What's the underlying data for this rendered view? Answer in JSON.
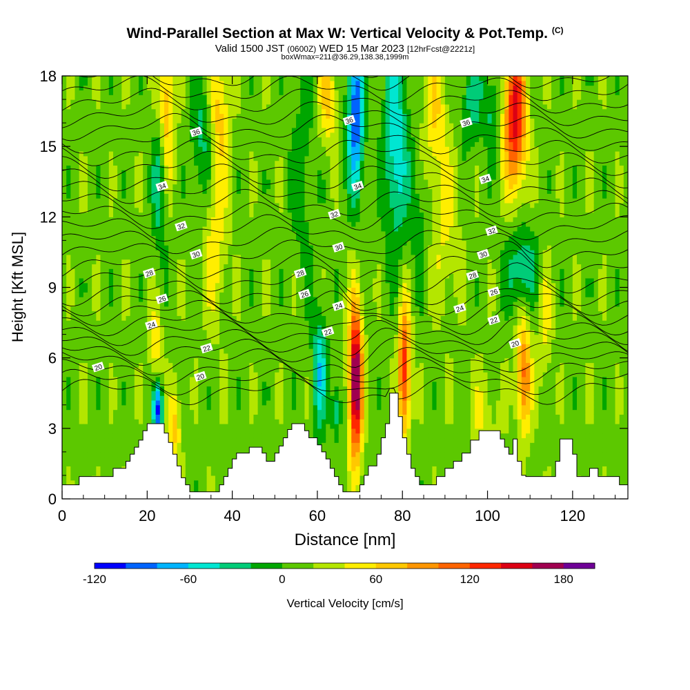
{
  "header": {
    "title": "Wind-Parallel Section at Max W: Vertical Velocity & Pot.Temp.",
    "title_mark": "(C)",
    "valid_line_pre": "Valid 1500 JST",
    "valid_line_utc": "(0600Z)",
    "valid_line_post": "WED 15 Mar 2023",
    "valid_line_fcst": "[12hrFcst@2221z]",
    "box_line": "boxWmax=211@36.29,138.38,1999m"
  },
  "chart_data": {
    "type": "heatmap",
    "xlabel": "Distance [nm]",
    "ylabel": "Height [Kft MSL]",
    "xlim": [
      0,
      133
    ],
    "ylim": [
      0,
      18
    ],
    "xticks": [
      0,
      20,
      40,
      60,
      80,
      100,
      120
    ],
    "yticks": [
      0,
      3,
      6,
      9,
      12,
      15,
      18
    ],
    "colorbar": {
      "label": "Vertical Velocity [cm/s]",
      "min": -120,
      "max": 200,
      "step": 20,
      "tick_labels": [
        "-120",
        "-60",
        "0",
        "60",
        "120",
        "180"
      ],
      "tick_values": [
        -120,
        -60,
        0,
        60,
        120,
        180
      ],
      "colors": [
        "#0000ff",
        "#0064ff",
        "#00b4ff",
        "#00e6d2",
        "#00cc78",
        "#00a600",
        "#5cc800",
        "#b4e600",
        "#ffee00",
        "#ffc800",
        "#ff9600",
        "#ff6400",
        "#ff2800",
        "#dc0014",
        "#a00050",
        "#6e0096"
      ]
    },
    "terrain": [
      [
        0,
        0.6
      ],
      [
        4,
        0.6
      ],
      [
        4,
        0.95
      ],
      [
        12,
        0.95
      ],
      [
        12,
        1.3
      ],
      [
        15,
        1.3
      ],
      [
        15,
        1.6
      ],
      [
        16,
        1.6
      ],
      [
        16,
        1.9
      ],
      [
        17,
        1.9
      ],
      [
        17,
        2.2
      ],
      [
        18,
        2.2
      ],
      [
        18,
        2.5
      ],
      [
        19,
        2.5
      ],
      [
        19,
        2.9
      ],
      [
        20,
        2.9
      ],
      [
        20,
        3.2
      ],
      [
        24,
        3.2
      ],
      [
        24,
        2.8
      ],
      [
        25,
        2.8
      ],
      [
        25,
        2.4
      ],
      [
        26,
        2.4
      ],
      [
        26,
        1.9
      ],
      [
        27,
        1.9
      ],
      [
        27,
        1.4
      ],
      [
        28,
        1.4
      ],
      [
        28,
        0.9
      ],
      [
        29,
        0.9
      ],
      [
        29,
        0.6
      ],
      [
        30,
        0.6
      ],
      [
        30,
        0.3
      ],
      [
        37,
        0.3
      ],
      [
        37,
        0.6
      ],
      [
        38,
        0.6
      ],
      [
        38,
        0.95
      ],
      [
        39,
        0.95
      ],
      [
        39,
        1.3
      ],
      [
        40,
        1.3
      ],
      [
        40,
        1.7
      ],
      [
        41,
        1.7
      ],
      [
        41,
        1.95
      ],
      [
        44,
        1.95
      ],
      [
        44,
        2.2
      ],
      [
        47,
        2.2
      ],
      [
        47,
        1.95
      ],
      [
        48,
        1.95
      ],
      [
        48,
        1.6
      ],
      [
        50,
        1.6
      ],
      [
        50,
        1.95
      ],
      [
        51,
        1.95
      ],
      [
        51,
        2.25
      ],
      [
        52,
        2.25
      ],
      [
        52,
        2.6
      ],
      [
        53,
        2.6
      ],
      [
        53,
        2.95
      ],
      [
        54,
        2.95
      ],
      [
        54,
        3.2
      ],
      [
        57,
        3.2
      ],
      [
        57,
        2.9
      ],
      [
        58,
        2.9
      ],
      [
        58,
        2.6
      ],
      [
        60,
        2.6
      ],
      [
        60,
        2.3
      ],
      [
        61,
        2.3
      ],
      [
        61,
        2.0
      ],
      [
        62,
        2.0
      ],
      [
        62,
        1.7
      ],
      [
        63,
        1.7
      ],
      [
        63,
        1.3
      ],
      [
        64,
        1.3
      ],
      [
        64,
        0.95
      ],
      [
        65,
        0.95
      ],
      [
        65,
        0.6
      ],
      [
        66,
        0.6
      ],
      [
        66,
        0.3
      ],
      [
        70,
        0.3
      ],
      [
        70,
        0.6
      ],
      [
        71,
        0.6
      ],
      [
        71,
        1.0
      ],
      [
        72,
        1.0
      ],
      [
        72,
        1.4
      ],
      [
        74,
        1.4
      ],
      [
        74,
        1.9
      ],
      [
        75,
        1.9
      ],
      [
        75,
        2.6
      ],
      [
        76,
        2.6
      ],
      [
        76,
        3.2
      ],
      [
        77,
        3.2
      ],
      [
        77,
        4.5
      ],
      [
        79,
        4.5
      ],
      [
        79,
        3.5
      ],
      [
        80,
        3.5
      ],
      [
        80,
        2.6
      ],
      [
        81,
        2.6
      ],
      [
        81,
        1.9
      ],
      [
        82,
        1.9
      ],
      [
        82,
        1.3
      ],
      [
        83,
        1.3
      ],
      [
        83,
        0.95
      ],
      [
        84,
        0.95
      ],
      [
        84,
        0.6
      ],
      [
        88,
        0.6
      ],
      [
        88,
        0.95
      ],
      [
        90,
        0.95
      ],
      [
        90,
        1.3
      ],
      [
        92,
        1.3
      ],
      [
        92,
        1.6
      ],
      [
        94,
        1.6
      ],
      [
        94,
        1.95
      ],
      [
        96,
        1.95
      ],
      [
        96,
        2.5
      ],
      [
        98,
        2.5
      ],
      [
        98,
        2.9
      ],
      [
        103,
        2.9
      ],
      [
        103,
        2.55
      ],
      [
        104,
        2.55
      ],
      [
        104,
        2.2
      ],
      [
        105,
        2.2
      ],
      [
        105,
        1.9
      ],
      [
        106,
        1.9
      ],
      [
        106,
        2.55
      ],
      [
        107,
        2.55
      ],
      [
        107,
        1.6
      ],
      [
        108,
        1.6
      ],
      [
        108,
        1.0
      ],
      [
        109,
        1.0
      ],
      [
        109,
        0.95
      ],
      [
        116,
        0.95
      ],
      [
        116,
        1.6
      ],
      [
        117,
        1.6
      ],
      [
        117,
        2.55
      ],
      [
        120,
        2.55
      ],
      [
        120,
        1.9
      ],
      [
        121,
        1.9
      ],
      [
        121,
        0.95
      ],
      [
        124,
        0.95
      ],
      [
        124,
        1.3
      ],
      [
        126,
        1.3
      ],
      [
        126,
        0.95
      ],
      [
        131,
        0.95
      ],
      [
        131,
        0.6
      ],
      [
        133,
        0.6
      ]
    ],
    "theta_contours": {
      "labeled_levels": [
        20,
        22,
        24,
        26,
        28,
        30,
        32,
        34,
        36
      ],
      "labels": [
        {
          "text": "20",
          "x": 8.5,
          "y": 5.6
        },
        {
          "text": "20",
          "x": 32.5,
          "y": 5.2
        },
        {
          "text": "20",
          "x": 106.5,
          "y": 6.6
        },
        {
          "text": "22",
          "x": 34,
          "y": 6.4
        },
        {
          "text": "22",
          "x": 62.5,
          "y": 7.1
        },
        {
          "text": "22",
          "x": 101.5,
          "y": 7.6
        },
        {
          "text": "24",
          "x": 21,
          "y": 7.4
        },
        {
          "text": "24",
          "x": 65,
          "y": 8.2
        },
        {
          "text": "24",
          "x": 93.5,
          "y": 8.1
        },
        {
          "text": "26",
          "x": 23.5,
          "y": 8.5
        },
        {
          "text": "26",
          "x": 57,
          "y": 8.7
        },
        {
          "text": "26",
          "x": 101.5,
          "y": 8.8
        },
        {
          "text": "28",
          "x": 20.5,
          "y": 9.6
        },
        {
          "text": "28",
          "x": 56,
          "y": 9.6
        },
        {
          "text": "28",
          "x": 96.5,
          "y": 9.5
        },
        {
          "text": "30",
          "x": 31.5,
          "y": 10.4
        },
        {
          "text": "30",
          "x": 65,
          "y": 10.7
        },
        {
          "text": "30",
          "x": 99,
          "y": 10.4
        },
        {
          "text": "32",
          "x": 28,
          "y": 11.6
        },
        {
          "text": "32",
          "x": 64,
          "y": 12.1
        },
        {
          "text": "32",
          "x": 101,
          "y": 11.4
        },
        {
          "text": "34",
          "x": 23.5,
          "y": 13.3
        },
        {
          "text": "34",
          "x": 69.5,
          "y": 13.3
        },
        {
          "text": "34",
          "x": 99.5,
          "y": 13.6
        },
        {
          "text": "36",
          "x": 31.5,
          "y": 15.6
        },
        {
          "text": "36",
          "x": 67.5,
          "y": 16.1
        },
        {
          "text": "36",
          "x": 95,
          "y": 16.0
        }
      ]
    },
    "w_features": [
      {
        "x": 69,
        "y": 5.0,
        "sx": 1.1,
        "sy": 2.3,
        "w": 185
      },
      {
        "x": 80.5,
        "y": 5.5,
        "sx": 1.0,
        "sy": 2.0,
        "w": 125
      },
      {
        "x": 106.5,
        "y": 16.3,
        "sx": 1.8,
        "sy": 2.2,
        "w": 140
      },
      {
        "x": 108.5,
        "y": 5.3,
        "sx": 1.2,
        "sy": 1.8,
        "w": 95
      },
      {
        "x": 24.5,
        "y": 16.5,
        "sx": 1.4,
        "sy": 2.2,
        "w": 70
      },
      {
        "x": 37,
        "y": 16.5,
        "sx": 1.6,
        "sy": 1.8,
        "w": 55
      },
      {
        "x": 36,
        "y": 11.0,
        "sx": 2.0,
        "sy": 2.5,
        "w": 40
      },
      {
        "x": 62.5,
        "y": 17.0,
        "sx": 1.5,
        "sy": 1.4,
        "w": 55
      },
      {
        "x": 87.5,
        "y": 16.5,
        "sx": 2.0,
        "sy": 2.0,
        "w": 45
      },
      {
        "x": 90,
        "y": 11.5,
        "sx": 2.5,
        "sy": 2.5,
        "w": 30
      },
      {
        "x": 26.5,
        "y": 3.0,
        "sx": 1.0,
        "sy": 1.2,
        "w": 55
      },
      {
        "x": 22,
        "y": 6.5,
        "sx": 1.0,
        "sy": 1.2,
        "w": 45
      },
      {
        "x": 113.5,
        "y": 7.5,
        "sx": 1.2,
        "sy": 1.8,
        "w": 35
      },
      {
        "x": 99,
        "y": 3.5,
        "sx": 2.5,
        "sy": 1.5,
        "w": 25
      },
      {
        "x": 69,
        "y": 16.5,
        "sx": 1.3,
        "sy": 2.4,
        "w": -115
      },
      {
        "x": 78.5,
        "y": 15.0,
        "sx": 2.0,
        "sy": 3.0,
        "w": -70
      },
      {
        "x": 22.5,
        "y": 3.8,
        "sx": 0.8,
        "sy": 0.8,
        "w": -110
      },
      {
        "x": 23,
        "y": 13.5,
        "sx": 1.2,
        "sy": 2.0,
        "w": -55
      },
      {
        "x": 60.5,
        "y": 5.5,
        "sx": 1.2,
        "sy": 1.8,
        "w": -65
      },
      {
        "x": 64.5,
        "y": 3.8,
        "sx": 0.8,
        "sy": 0.9,
        "w": -50
      },
      {
        "x": 108,
        "y": 9.8,
        "sx": 2.5,
        "sy": 1.3,
        "w": -55
      },
      {
        "x": 33,
        "y": 15.2,
        "sx": 1.8,
        "sy": 2.0,
        "w": -40
      },
      {
        "x": 56.5,
        "y": 14.0,
        "sx": 2.0,
        "sy": 3.0,
        "w": -25
      },
      {
        "x": 96.5,
        "y": 17.2,
        "sx": 1.8,
        "sy": 1.5,
        "w": -45
      },
      {
        "x": 101,
        "y": 16.5,
        "sx": 1.0,
        "sy": 1.2,
        "w": -40
      },
      {
        "x": 84,
        "y": 12.0,
        "sx": 1.5,
        "sy": 2.0,
        "w": -25
      }
    ]
  }
}
